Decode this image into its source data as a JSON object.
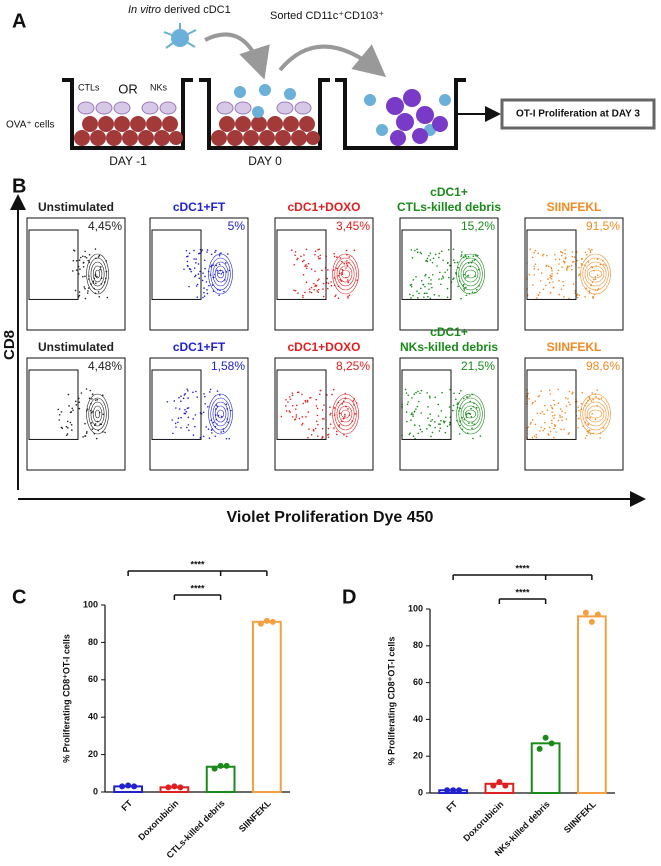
{
  "panel_a": {
    "label": "A",
    "cdc1_italic": "In vitro",
    "cdc1_rest": "derived cDC1",
    "sorted": "Sorted CD11c⁺CD103⁺",
    "ctls": "CTLs",
    "or": "OR",
    "nks": "NKs",
    "ova": "OVA⁺ cells",
    "day_minus1": "DAY -1",
    "day0": "DAY 0",
    "readout": "OT-I Proliferation at DAY 3"
  },
  "panel_b": {
    "label": "B",
    "y_axis": "CD8",
    "x_axis": "Violet Proliferation Dye 450",
    "rows": [
      [
        {
          "title": [
            "Unstimulated"
          ],
          "percent": "4,45%",
          "color": "#222222"
        },
        {
          "title": [
            "cDC1+FT"
          ],
          "percent": "5%",
          "color": "#2222cc"
        },
        {
          "title": [
            "cDC1+DOXO"
          ],
          "percent": "3,45%",
          "color": "#e02020"
        },
        {
          "title": [
            "cDC1+",
            "CTLs-killed debris"
          ],
          "percent": "15,2%",
          "color": "#1a8a1a"
        },
        {
          "title": [
            "SIINFEKL"
          ],
          "percent": "91,5%",
          "color": "#f08a24"
        }
      ],
      [
        {
          "title": [
            "Unstimulated"
          ],
          "percent": "4,48%",
          "color": "#222222"
        },
        {
          "title": [
            "cDC1+FT"
          ],
          "percent": "1,58%",
          "color": "#2222cc"
        },
        {
          "title": [
            "cDC1+DOXO"
          ],
          "percent": "8,25%",
          "color": "#e02020"
        },
        {
          "title": [
            "cDC1+",
            "NKs-killed debris"
          ],
          "percent": "21,5%",
          "color": "#1a8a1a"
        },
        {
          "title": [
            "SIINFEKL"
          ],
          "percent": "98,6%",
          "color": "#f08a24"
        }
      ]
    ]
  },
  "chart_data": [
    {
      "panel": "C",
      "type": "bar",
      "y_label": "% Proliferating CD8⁺OT-I cells",
      "categories": [
        "FT",
        "Doxorubicin",
        "CTLs-killed debris",
        "SIINFEKL"
      ],
      "values": [
        3,
        2.5,
        13.5,
        91
      ],
      "replicates": [
        [
          3,
          3.5,
          3
        ],
        [
          2.5,
          3,
          2.5
        ],
        [
          12.5,
          14,
          14
        ],
        [
          90,
          91.5,
          91
        ]
      ],
      "colors": [
        "#2222cc",
        "#e02020",
        "#1a8a1a",
        "#f5a040"
      ],
      "ylim": [
        0,
        100
      ],
      "yticks": [
        0,
        20,
        40,
        60,
        80,
        100
      ],
      "annotations": [
        "****",
        "****"
      ]
    },
    {
      "panel": "D",
      "type": "bar",
      "y_label": "% Proliferating CD8⁺OT-I cells",
      "categories": [
        "FT",
        "Doxorubicin",
        "NKs-killed debris",
        "SIINFEKL"
      ],
      "values": [
        1.5,
        5,
        27,
        96
      ],
      "replicates": [
        [
          1.5,
          1.5,
          1.5
        ],
        [
          4,
          6,
          4
        ],
        [
          24,
          30,
          27
        ],
        [
          98,
          93,
          97
        ]
      ],
      "colors": [
        "#2222cc",
        "#e02020",
        "#1a8a1a",
        "#f5a040"
      ],
      "ylim": [
        0,
        100
      ],
      "yticks": [
        0,
        20,
        40,
        60,
        80,
        100
      ],
      "annotations": [
        "****",
        "****"
      ]
    }
  ]
}
